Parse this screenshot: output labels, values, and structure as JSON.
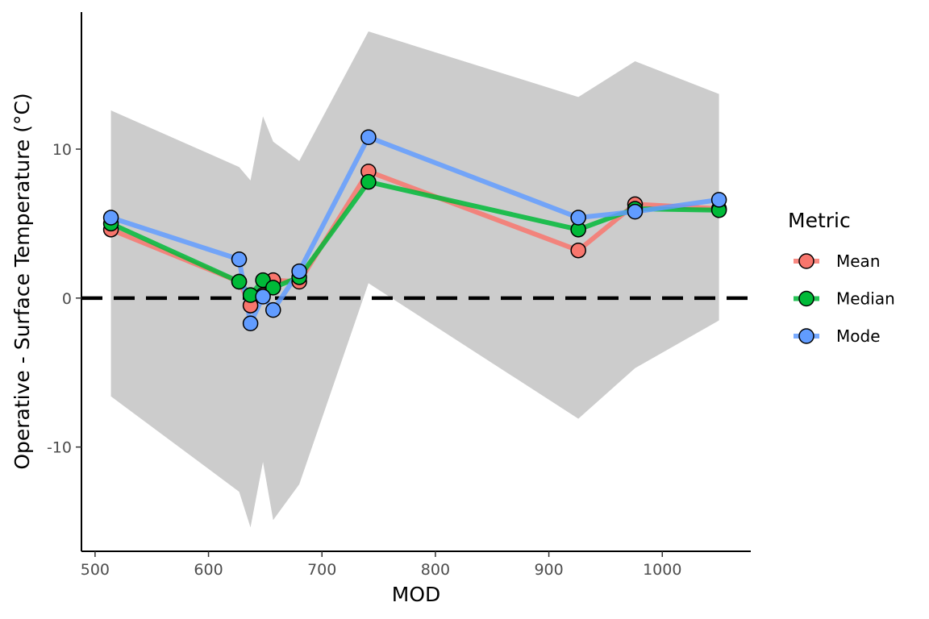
{
  "chart_data": {
    "type": "line",
    "xlabel": "MOD",
    "ylabel": "Operative - Surface Temperature (°C)",
    "xlim": [
      488,
      1078
    ],
    "ylim": [
      -17,
      19.2
    ],
    "x_ticks": [
      500,
      600,
      700,
      800,
      900,
      1000
    ],
    "x_tick_labels": [
      "500",
      "600",
      "700",
      "800",
      "900",
      "1000"
    ],
    "y_ticks": [
      -10,
      0,
      10
    ],
    "y_tick_labels": [
      "-10",
      "0",
      "10"
    ],
    "reference_line": {
      "y": 0,
      "style": "dashed",
      "color": "#000000"
    },
    "grid": false,
    "legend": {
      "title": "Metric",
      "placement": "right"
    },
    "ribbon": {
      "color": "#cccccc",
      "x": [
        514,
        627,
        637,
        648,
        657,
        680,
        741,
        926,
        976,
        1050
      ],
      "upper": [
        12.6,
        8.8,
        7.9,
        12.2,
        10.5,
        9.2,
        17.9,
        13.5,
        15.9,
        13.7
      ],
      "lower": [
        -6.6,
        -13.0,
        -15.4,
        -11.0,
        -14.9,
        -12.5,
        1.0,
        -8.1,
        -4.7,
        -1.5
      ]
    },
    "series": [
      {
        "name": "Mean",
        "color": "#F8766D",
        "x": [
          514,
          627,
          637,
          648,
          657,
          680,
          741,
          926,
          976,
          1050
        ],
        "values": [
          4.6,
          1.1,
          -0.5,
          0.2,
          1.2,
          1.1,
          8.5,
          3.2,
          6.3,
          6.0
        ]
      },
      {
        "name": "Median",
        "color": "#00BA38",
        "x": [
          514,
          627,
          637,
          648,
          657,
          680,
          741,
          926,
          976,
          1050
        ],
        "values": [
          5.0,
          1.1,
          0.2,
          1.2,
          0.7,
          1.4,
          7.8,
          4.6,
          6.0,
          5.9
        ]
      },
      {
        "name": "Mode",
        "color": "#619CFF",
        "x": [
          514,
          627,
          637,
          648,
          657,
          680,
          741,
          926,
          976,
          1050
        ],
        "values": [
          5.4,
          2.6,
          -1.7,
          0.1,
          -0.8,
          1.8,
          10.8,
          5.4,
          5.8,
          6.6
        ]
      }
    ]
  }
}
